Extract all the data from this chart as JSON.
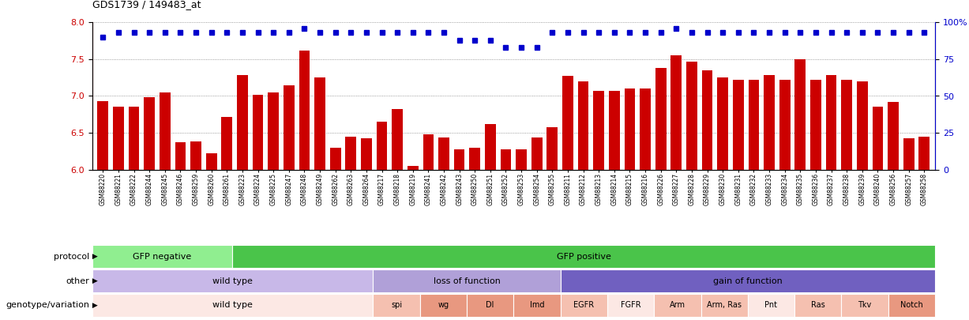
{
  "title": "GDS1739 / 149483_at",
  "samples": [
    "GSM88220",
    "GSM88221",
    "GSM88222",
    "GSM88244",
    "GSM88245",
    "GSM88246",
    "GSM88259",
    "GSM88260",
    "GSM88261",
    "GSM88223",
    "GSM88224",
    "GSM88225",
    "GSM88247",
    "GSM88248",
    "GSM88249",
    "GSM88262",
    "GSM88263",
    "GSM88264",
    "GSM88217",
    "GSM88218",
    "GSM88219",
    "GSM88241",
    "GSM88242",
    "GSM88243",
    "GSM88250",
    "GSM88251",
    "GSM88252",
    "GSM88253",
    "GSM88254",
    "GSM88255",
    "GSM88211",
    "GSM88212",
    "GSM88213",
    "GSM88214",
    "GSM88215",
    "GSM88216",
    "GSM88226",
    "GSM88227",
    "GSM88228",
    "GSM88229",
    "GSM88230",
    "GSM88231",
    "GSM88232",
    "GSM88233",
    "GSM88234",
    "GSM88235",
    "GSM88236",
    "GSM88237",
    "GSM88238",
    "GSM88239",
    "GSM88240",
    "GSM88256",
    "GSM88257",
    "GSM88258"
  ],
  "bar_values": [
    6.93,
    6.85,
    6.85,
    6.98,
    7.05,
    6.37,
    6.38,
    6.22,
    6.72,
    7.28,
    7.02,
    7.05,
    7.14,
    7.62,
    7.25,
    6.3,
    6.45,
    6.43,
    6.65,
    6.82,
    6.05,
    6.48,
    6.44,
    6.28,
    6.3,
    6.62,
    6.27,
    6.27,
    6.44,
    6.58,
    7.27,
    7.2,
    7.07,
    7.07,
    7.1,
    7.1,
    7.38,
    7.55,
    7.47,
    7.35,
    7.25,
    7.22,
    7.22,
    7.28,
    7.22,
    7.5,
    7.22,
    7.28,
    7.22,
    7.2,
    6.85,
    6.92,
    6.43,
    6.45
  ],
  "percentile_values": [
    90,
    93,
    93,
    93,
    93,
    93,
    93,
    93,
    93,
    93,
    93,
    93,
    93,
    96,
    93,
    93,
    93,
    93,
    93,
    93,
    93,
    93,
    93,
    88,
    88,
    88,
    83,
    83,
    83,
    93,
    93,
    93,
    93,
    93,
    93,
    93,
    93,
    96,
    93,
    93,
    93,
    93,
    93,
    93,
    93,
    93,
    93,
    93,
    93,
    93,
    93,
    93,
    93,
    93
  ],
  "bar_color": "#cc0000",
  "percentile_color": "#0000cc",
  "ylim_left": [
    6.0,
    8.0
  ],
  "ylim_right": [
    0,
    100
  ],
  "yticks_left": [
    6.0,
    6.5,
    7.0,
    7.5,
    8.0
  ],
  "yticks_right": [
    0,
    25,
    50,
    75,
    100
  ],
  "protocol_groups": [
    {
      "label": "GFP negative",
      "start": 0,
      "end": 9,
      "color": "#90ee90"
    },
    {
      "label": "GFP positive",
      "start": 9,
      "end": 54,
      "color": "#4ac44a"
    }
  ],
  "other_groups": [
    {
      "label": "wild type",
      "start": 0,
      "end": 18,
      "color": "#c8b8e8"
    },
    {
      "label": "loss of function",
      "start": 18,
      "end": 30,
      "color": "#b0a0d8"
    },
    {
      "label": "gain of function",
      "start": 30,
      "end": 54,
      "color": "#7060c0"
    }
  ],
  "genotype_groups": [
    {
      "label": "wild type",
      "start": 0,
      "end": 18,
      "color": "#fce8e4"
    },
    {
      "label": "spi",
      "start": 18,
      "end": 21,
      "color": "#f5c0b0"
    },
    {
      "label": "wg",
      "start": 21,
      "end": 24,
      "color": "#e89880"
    },
    {
      "label": "Dl",
      "start": 24,
      "end": 27,
      "color": "#e89880"
    },
    {
      "label": "Imd",
      "start": 27,
      "end": 30,
      "color": "#e89880"
    },
    {
      "label": "EGFR",
      "start": 30,
      "end": 33,
      "color": "#f5c0b0"
    },
    {
      "label": "FGFR",
      "start": 33,
      "end": 36,
      "color": "#fce8e4"
    },
    {
      "label": "Arm",
      "start": 36,
      "end": 39,
      "color": "#f5c0b0"
    },
    {
      "label": "Arm, Ras",
      "start": 39,
      "end": 42,
      "color": "#f5c0b0"
    },
    {
      "label": "Pnt",
      "start": 42,
      "end": 45,
      "color": "#fce8e4"
    },
    {
      "label": "Ras",
      "start": 45,
      "end": 48,
      "color": "#f5c0b0"
    },
    {
      "label": "Tkv",
      "start": 48,
      "end": 51,
      "color": "#f5c0b0"
    },
    {
      "label": "Notch",
      "start": 51,
      "end": 54,
      "color": "#e89880"
    }
  ],
  "row_labels": [
    "protocol",
    "other",
    "genotype/variation"
  ]
}
